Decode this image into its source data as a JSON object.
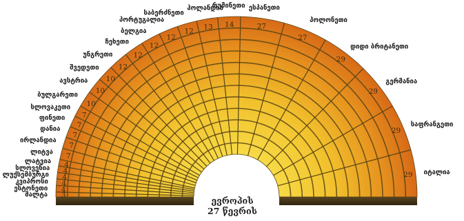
{
  "center_title": {
    "line1": "ევროპის",
    "line2": "27 წევრის"
  },
  "chart_data": {
    "type": "parliament-arc",
    "title": "ევროპის 27 წევრის",
    "rows": 12,
    "colors": {
      "inner": "#f5d33a",
      "outer": "#d9711a",
      "side": "#4a3a1a",
      "line": "#5a4515"
    },
    "countries": [
      {
        "name": "მალტა",
        "value": 3
      },
      {
        "name": "ესტონეთი",
        "value": 4
      },
      {
        "name": "კვიპროსი",
        "value": 4
      },
      {
        "name": "ლუქსემბურგი",
        "value": 4
      },
      {
        "name": "სლოვენია",
        "value": 4
      },
      {
        "name": "ლატვია",
        "value": 4
      },
      {
        "name": "ლიტვა",
        "value": 7
      },
      {
        "name": "ირლანდია",
        "value": 7
      },
      {
        "name": "დანია",
        "value": 7
      },
      {
        "name": "ფინეთი",
        "value": 7
      },
      {
        "name": "სლოვაკეთი",
        "value": 7
      },
      {
        "name": "ბულგარეთი",
        "value": 10
      },
      {
        "name": "ავსტრია",
        "value": 10
      },
      {
        "name": "შვედეთი",
        "value": 10
      },
      {
        "name": "უნგრეთი",
        "value": 12
      },
      {
        "name": "ჩეხეთი",
        "value": 12
      },
      {
        "name": "ბელგია",
        "value": 12
      },
      {
        "name": "პორტუგალია",
        "value": 12
      },
      {
        "name": "საბერძნეთი",
        "value": 12
      },
      {
        "name": "ჰოლანდია",
        "value": 13
      },
      {
        "name": "რუმინეთი",
        "value": 14
      },
      {
        "name": "ესპანეთი",
        "value": 27
      },
      {
        "name": "პოლონეთი",
        "value": 27
      },
      {
        "name": "დიდი ბრიტანეთი",
        "value": 29
      },
      {
        "name": "გერმანია",
        "value": 29
      },
      {
        "name": "საფრანგეთი",
        "value": 29
      },
      {
        "name": "იტალია",
        "value": 29
      }
    ]
  }
}
